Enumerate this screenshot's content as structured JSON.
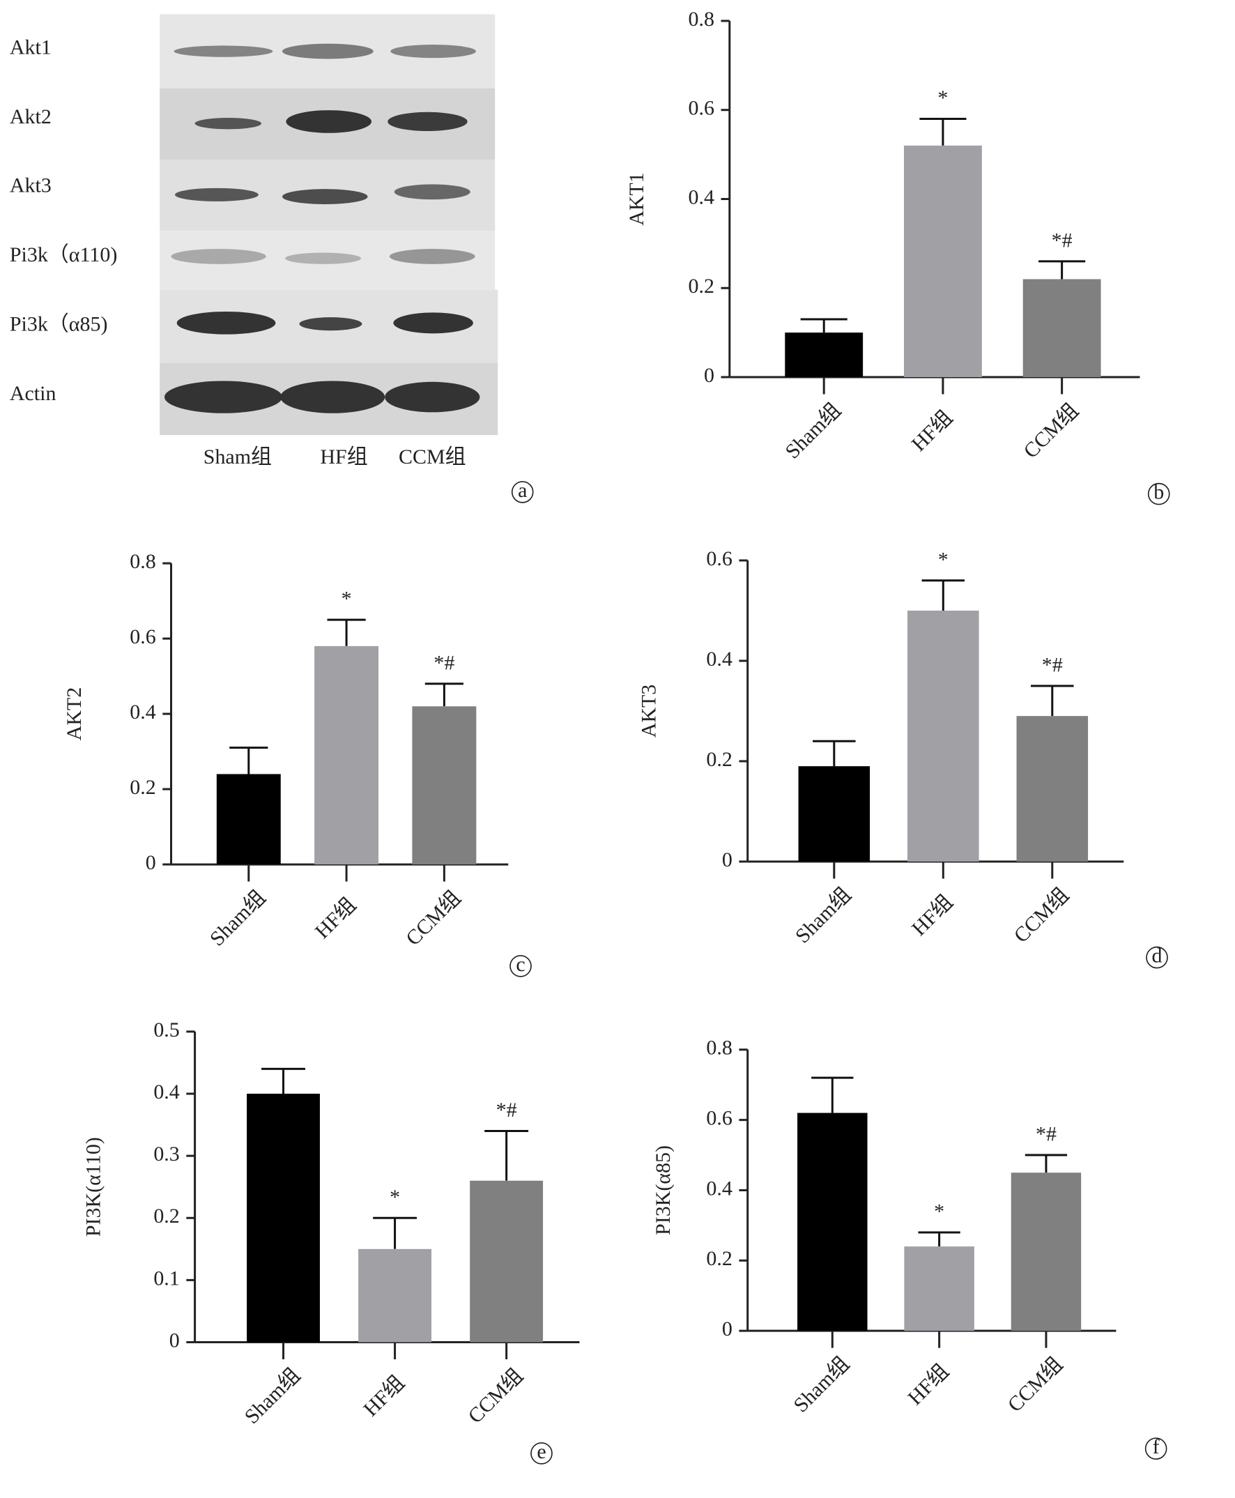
{
  "blot": {
    "rows": [
      "Akt1",
      "Akt2",
      "Akt3",
      "Pi3k（α110)",
      "Pi3k（α85)",
      "Actin"
    ],
    "columns": [
      "Sham组",
      "HF组",
      "CCM组"
    ],
    "panel_label": "a"
  },
  "chart_data": [
    {
      "type": "bar",
      "panel_label": "b",
      "y_label": "AKT1",
      "categories": [
        "Sham组",
        "HF组",
        "CCM组"
      ],
      "values": [
        0.1,
        0.52,
        0.22
      ],
      "errors": [
        0.03,
        0.06,
        0.04
      ],
      "colors": [
        "#000000",
        "#a0a0a5",
        "#808080"
      ],
      "ylim": [
        0,
        0.8
      ],
      "yticks": [
        0,
        0.2,
        0.4,
        0.6,
        0.8
      ],
      "annotations": [
        null,
        "*",
        "*#"
      ]
    },
    {
      "type": "bar",
      "panel_label": "c",
      "y_label": "AKT2",
      "categories": [
        "Sham组",
        "HF组",
        "CCM组"
      ],
      "values": [
        0.24,
        0.58,
        0.42
      ],
      "errors": [
        0.07,
        0.07,
        0.06
      ],
      "colors": [
        "#000000",
        "#a0a0a5",
        "#808080"
      ],
      "ylim": [
        0,
        0.8
      ],
      "yticks": [
        0,
        0.2,
        0.4,
        0.6,
        0.8
      ],
      "annotations": [
        null,
        "*",
        "*#"
      ]
    },
    {
      "type": "bar",
      "panel_label": "d",
      "y_label": "AKT3",
      "categories": [
        "Sham组",
        "HF组",
        "CCM组"
      ],
      "values": [
        0.19,
        0.5,
        0.29
      ],
      "errors": [
        0.05,
        0.06,
        0.06
      ],
      "colors": [
        "#000000",
        "#a0a0a5",
        "#808080"
      ],
      "ylim": [
        0,
        0.6
      ],
      "yticks": [
        0,
        0.2,
        0.4,
        0.6
      ],
      "annotations": [
        null,
        "*",
        "*#"
      ]
    },
    {
      "type": "bar",
      "panel_label": "e",
      "y_label": "PI3K(α110)",
      "categories": [
        "Sham组",
        "HF组",
        "CCM组"
      ],
      "values": [
        0.4,
        0.15,
        0.26
      ],
      "errors": [
        0.04,
        0.05,
        0.08
      ],
      "colors": [
        "#000000",
        "#a0a0a5",
        "#808080"
      ],
      "ylim": [
        0,
        0.5
      ],
      "yticks": [
        0,
        0.1,
        0.2,
        0.3,
        0.4,
        0.5
      ],
      "annotations": [
        null,
        "*",
        "*#"
      ]
    },
    {
      "type": "bar",
      "panel_label": "f",
      "y_label": "PI3K(α85)",
      "categories": [
        "Sham组",
        "HF组",
        "CCM组"
      ],
      "values": [
        0.62,
        0.24,
        0.45
      ],
      "errors": [
        0.1,
        0.04,
        0.05
      ],
      "colors": [
        "#000000",
        "#a0a0a5",
        "#808080"
      ],
      "ylim": [
        0,
        0.8
      ],
      "yticks": [
        0,
        0.2,
        0.4,
        0.6,
        0.8
      ],
      "annotations": [
        null,
        "*",
        "*#"
      ]
    }
  ]
}
